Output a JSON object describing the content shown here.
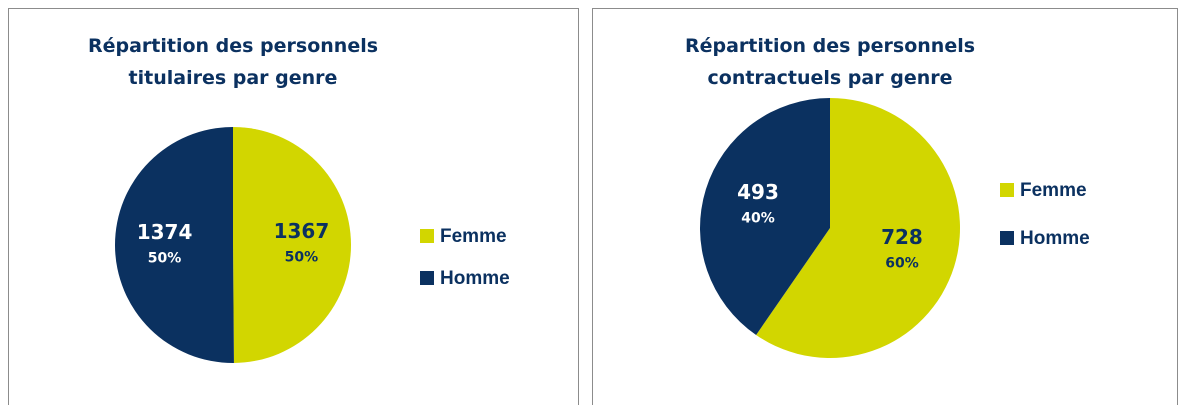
{
  "chart_data": [
    {
      "type": "pie",
      "title": "Répartition des personnels titulaires par genre",
      "categories": [
        "Femme",
        "Homme"
      ],
      "values": [
        1367,
        1374
      ],
      "percentage_labels": [
        "50%",
        "50%"
      ],
      "colors": [
        "#d2d600",
        "#0b3160"
      ],
      "legend": "right"
    },
    {
      "type": "pie",
      "title": "Répartition des personnels contractuels par genre",
      "categories": [
        "Femme",
        "Homme"
      ],
      "values": [
        728,
        493
      ],
      "percentage_labels": [
        "60%",
        "40%"
      ],
      "colors": [
        "#d2d600",
        "#0b3160"
      ],
      "legend": "right"
    }
  ]
}
